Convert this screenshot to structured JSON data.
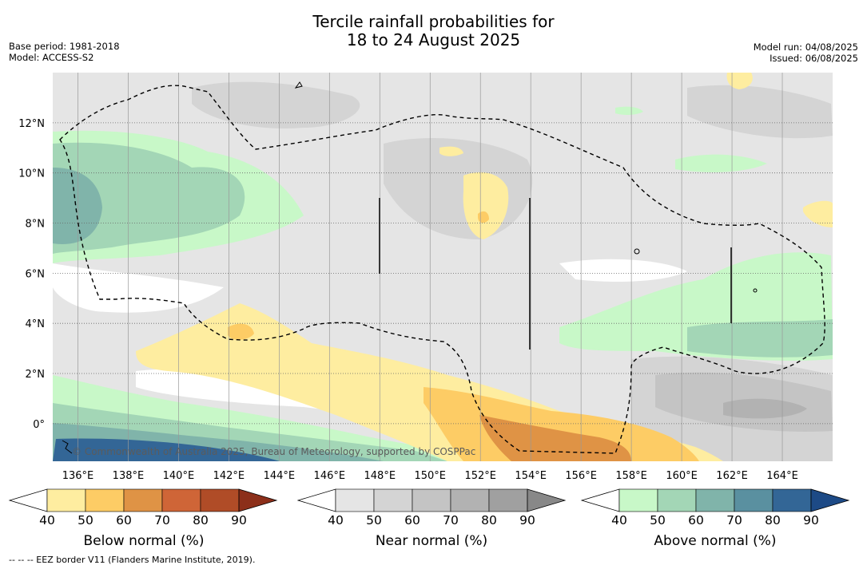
{
  "title": {
    "line1": "Tercile rainfall probabilities for",
    "line2": "18 to 24 August 2025"
  },
  "meta": {
    "base_period": "Base period: 1981-2018",
    "model": "Model: ACCESS-S2",
    "model_run": "Model run: 04/08/2025",
    "issued": "Issued: 06/08/2025"
  },
  "map": {
    "lon_range": [
      135,
      166
    ],
    "lat_range": [
      -1.5,
      14
    ],
    "lon_ticks": [
      "136°E",
      "138°E",
      "140°E",
      "142°E",
      "144°E",
      "146°E",
      "148°E",
      "150°E",
      "152°E",
      "154°E",
      "156°E",
      "158°E",
      "160°E",
      "162°E",
      "164°E"
    ],
    "lat_ticks": [
      "12°N",
      "10°N",
      "8°N",
      "6°N",
      "4°N",
      "2°N",
      "0°"
    ],
    "copyright": "© Commonwealth of Australia 2025, Bureau of Meteorology, supported by COSPPac"
  },
  "colorbars": [
    {
      "label": "Below normal (%)",
      "ticks": [
        "40",
        "50",
        "60",
        "70",
        "80",
        "90"
      ],
      "colors": [
        "#ffffff",
        "#feeda0",
        "#fdcc65",
        "#df9345",
        "#cf6537",
        "#b04c27",
        "#8c2f1a"
      ]
    },
    {
      "label": "Near normal (%)",
      "ticks": [
        "40",
        "50",
        "60",
        "70",
        "80",
        "90"
      ],
      "colors": [
        "#ffffff",
        "#e5e5e5",
        "#d4d4d4",
        "#c4c4c4",
        "#b2b2b2",
        "#a0a0a0",
        "#888888"
      ]
    },
    {
      "label": "Above normal (%)",
      "ticks": [
        "40",
        "50",
        "60",
        "70",
        "80",
        "90"
      ],
      "colors": [
        "#ffffff",
        "#c8f8c8",
        "#a3d6b6",
        "#80b4aa",
        "#5a90a0",
        "#336696",
        "#1d4a86"
      ]
    }
  ],
  "footnote": "--  --  -- EEZ border V11 (Flanders Marine Institute, 2019)."
}
